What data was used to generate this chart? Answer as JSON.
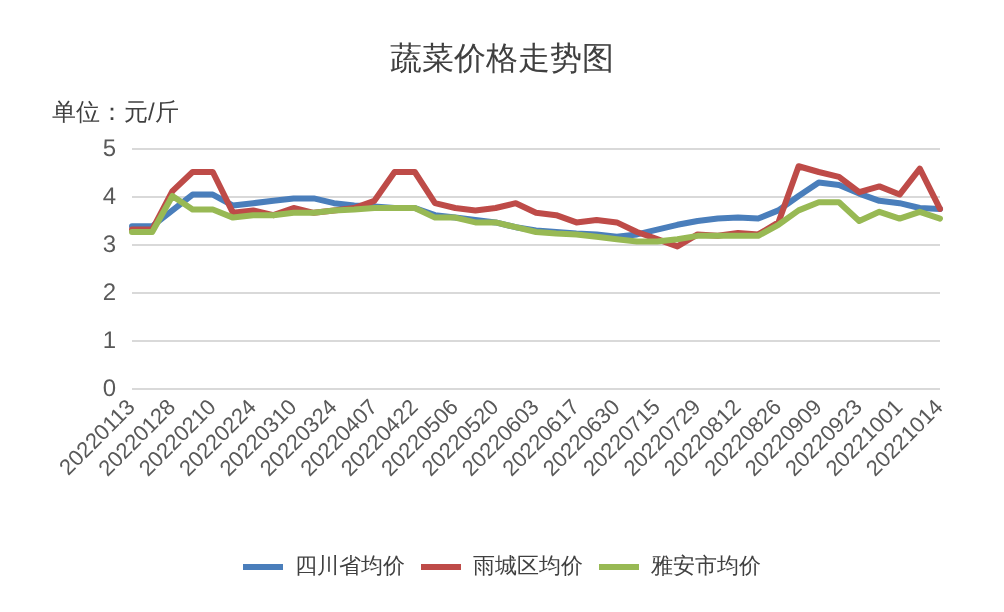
{
  "chart_data": {
    "type": "line",
    "title": "蔬菜价格走势图",
    "ylabel": "单位：元/斤",
    "categories": [
      "20220113",
      null,
      "20220128",
      null,
      "20220210",
      null,
      "20220224",
      null,
      "20220310",
      null,
      "20220324",
      null,
      "20220407",
      null,
      "20220422",
      null,
      "20220506",
      null,
      "20220520",
      null,
      "20220603",
      null,
      "20220617",
      null,
      "20220630",
      null,
      "20220715",
      null,
      "20220729",
      null,
      "20220812",
      null,
      "20220826",
      null,
      "20220909",
      null,
      "20220923",
      null,
      "20221001",
      null,
      "20221014"
    ],
    "series": [
      {
        "name": "四川省均价",
        "color": "#4a7ebb",
        "values": [
          3.37,
          3.37,
          3.7,
          4.03,
          4.03,
          3.8,
          3.85,
          3.9,
          3.95,
          3.95,
          3.85,
          3.8,
          3.78,
          3.75,
          3.75,
          3.6,
          3.55,
          3.5,
          3.45,
          3.35,
          3.28,
          3.25,
          3.22,
          3.2,
          3.15,
          3.2,
          3.3,
          3.4,
          3.48,
          3.53,
          3.55,
          3.53,
          3.7,
          4.0,
          4.28,
          4.23,
          4.05,
          3.9,
          3.85,
          3.75,
          3.73
        ]
      },
      {
        "name": "雨城区均价",
        "color": "#be4b48",
        "values": [
          3.3,
          3.3,
          4.1,
          4.5,
          4.5,
          3.65,
          3.7,
          3.6,
          3.75,
          3.65,
          3.7,
          3.75,
          3.9,
          4.5,
          4.5,
          3.85,
          3.75,
          3.7,
          3.75,
          3.85,
          3.65,
          3.6,
          3.45,
          3.5,
          3.45,
          3.25,
          3.1,
          2.95,
          3.2,
          3.17,
          3.23,
          3.2,
          3.45,
          4.62,
          4.5,
          4.4,
          4.08,
          4.2,
          4.03,
          4.57,
          3.73
        ]
      },
      {
        "name": "雅安市均价",
        "color": "#98b954",
        "values": [
          3.25,
          3.25,
          4.0,
          3.72,
          3.72,
          3.55,
          3.6,
          3.6,
          3.65,
          3.65,
          3.7,
          3.72,
          3.75,
          3.75,
          3.75,
          3.55,
          3.55,
          3.45,
          3.45,
          3.35,
          3.25,
          3.22,
          3.2,
          3.15,
          3.1,
          3.05,
          3.05,
          3.1,
          3.17,
          3.17,
          3.17,
          3.17,
          3.4,
          3.7,
          3.87,
          3.87,
          3.48,
          3.67,
          3.53,
          3.67,
          3.53
        ]
      }
    ],
    "ylim": [
      0,
      5
    ],
    "yticks": [
      0,
      1,
      2,
      3,
      4,
      5
    ],
    "grid": "y",
    "legend": "bottom",
    "marker": "none",
    "line_style": "solid"
  }
}
